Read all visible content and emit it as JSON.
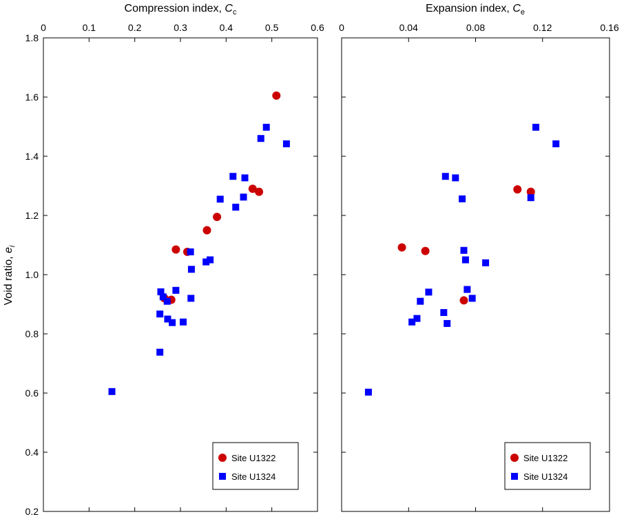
{
  "shared": {
    "ylabel_main": "Void ratio, ",
    "ylabel_italic": "e",
    "ylabel_sub": "i",
    "yticks": [
      "0.2",
      "0.4",
      "0.6",
      "0.8",
      "1.0",
      "1.2",
      "1.4",
      "1.6",
      "1.8"
    ],
    "ylim": [
      0.2,
      1.8
    ]
  },
  "chart_data": [
    {
      "type": "scatter",
      "title_main": "Compression index, ",
      "title_italic": "C",
      "title_sub": "c",
      "xlim": [
        0,
        0.6
      ],
      "ylim": [
        0.2,
        1.8
      ],
      "xticks": [
        "0",
        "0.1",
        "0.2",
        "0.3",
        "0.4",
        "0.5",
        "0.6"
      ],
      "xaxis_position": "top",
      "legend_position": "bottom-right",
      "series": [
        {
          "name": "Site U1322",
          "marker": "circle",
          "color": "#cc0000",
          "points": [
            [
              0.51,
              1.605
            ],
            [
              0.458,
              1.29
            ],
            [
              0.472,
              1.28
            ],
            [
              0.38,
              1.195
            ],
            [
              0.358,
              1.15
            ],
            [
              0.29,
              1.085
            ],
            [
              0.315,
              1.077
            ],
            [
              0.265,
              0.92
            ],
            [
              0.28,
              0.915
            ]
          ]
        },
        {
          "name": "Site U1324",
          "marker": "square",
          "color": "#0000ff",
          "points": [
            [
              0.488,
              1.498
            ],
            [
              0.476,
              1.46
            ],
            [
              0.532,
              1.442
            ],
            [
              0.415,
              1.332
            ],
            [
              0.441,
              1.327
            ],
            [
              0.387,
              1.255
            ],
            [
              0.438,
              1.262
            ],
            [
              0.421,
              1.228
            ],
            [
              0.322,
              1.077
            ],
            [
              0.365,
              1.05
            ],
            [
              0.356,
              1.043
            ],
            [
              0.324,
              1.018
            ],
            [
              0.29,
              0.947
            ],
            [
              0.257,
              0.942
            ],
            [
              0.323,
              0.92
            ],
            [
              0.262,
              0.925
            ],
            [
              0.271,
              0.91
            ],
            [
              0.255,
              0.867
            ],
            [
              0.272,
              0.85
            ],
            [
              0.306,
              0.84
            ],
            [
              0.282,
              0.838
            ],
            [
              0.255,
              0.738
            ],
            [
              0.15,
              0.605
            ]
          ]
        }
      ]
    },
    {
      "type": "scatter",
      "title_main": "Expansion index, ",
      "title_italic": "C",
      "title_sub": "e",
      "xlim": [
        0,
        0.16
      ],
      "ylim": [
        0.2,
        1.8
      ],
      "xticks": [
        "0",
        "0.04",
        "0.08",
        "0.12",
        "0.16"
      ],
      "xaxis_position": "top",
      "legend_position": "bottom-right",
      "series": [
        {
          "name": "Site U1322",
          "marker": "circle",
          "color": "#cc0000",
          "points": [
            [
              0.105,
              1.288
            ],
            [
              0.113,
              1.28
            ],
            [
              0.036,
              1.092
            ],
            [
              0.05,
              1.08
            ],
            [
              0.073,
              0.913
            ]
          ]
        },
        {
          "name": "Site U1324",
          "marker": "square",
          "color": "#0000ff",
          "points": [
            [
              0.116,
              1.498
            ],
            [
              0.128,
              1.442
            ],
            [
              0.062,
              1.332
            ],
            [
              0.068,
              1.327
            ],
            [
              0.072,
              1.256
            ],
            [
              0.113,
              1.26
            ],
            [
              0.073,
              1.082
            ],
            [
              0.074,
              1.05
            ],
            [
              0.086,
              1.04
            ],
            [
              0.075,
              0.95
            ],
            [
              0.052,
              0.941
            ],
            [
              0.078,
              0.92
            ],
            [
              0.047,
              0.91
            ],
            [
              0.061,
              0.872
            ],
            [
              0.045,
              0.852
            ],
            [
              0.042,
              0.84
            ],
            [
              0.063,
              0.835
            ],
            [
              0.016,
              0.603
            ]
          ]
        }
      ]
    }
  ]
}
